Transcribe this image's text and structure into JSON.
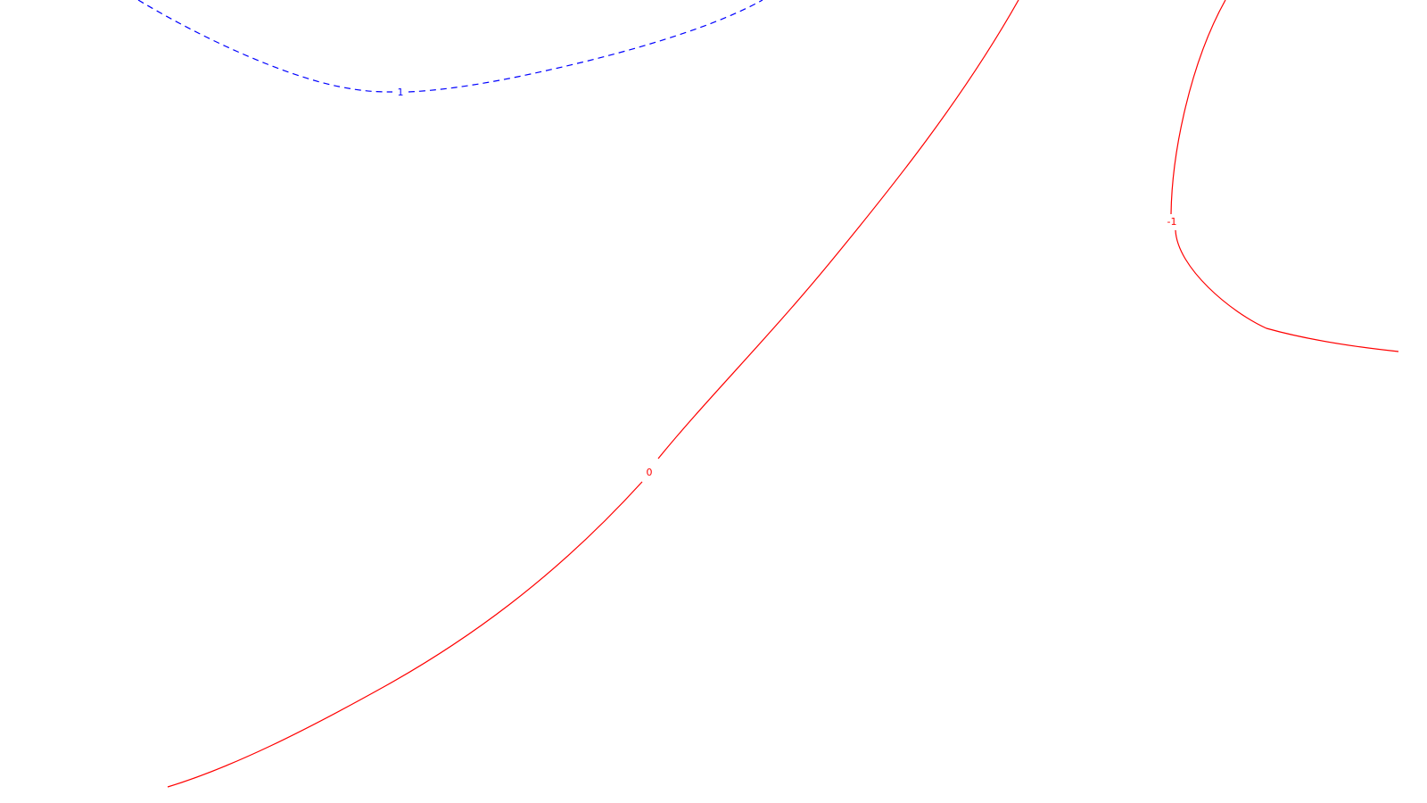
{
  "chart_data": {
    "type": "contour",
    "title": "",
    "xlabel": "",
    "ylabel": "",
    "grid": false,
    "legend": false,
    "colors": {
      "positive": "#0000ff",
      "zero": "#ff0000",
      "negative": "#ff0000",
      "background": "#ffffff"
    },
    "levels": [
      {
        "id": "level-1",
        "label": "1",
        "value": 1,
        "color": "#0000ff",
        "line_style": "dashed"
      },
      {
        "id": "level-0",
        "label": "0",
        "value": 0,
        "color": "#ff0000",
        "line_style": "solid"
      },
      {
        "id": "level-neg1",
        "label": "-1",
        "value": -1,
        "color": "#ff0000",
        "line_style": "solid"
      }
    ]
  }
}
